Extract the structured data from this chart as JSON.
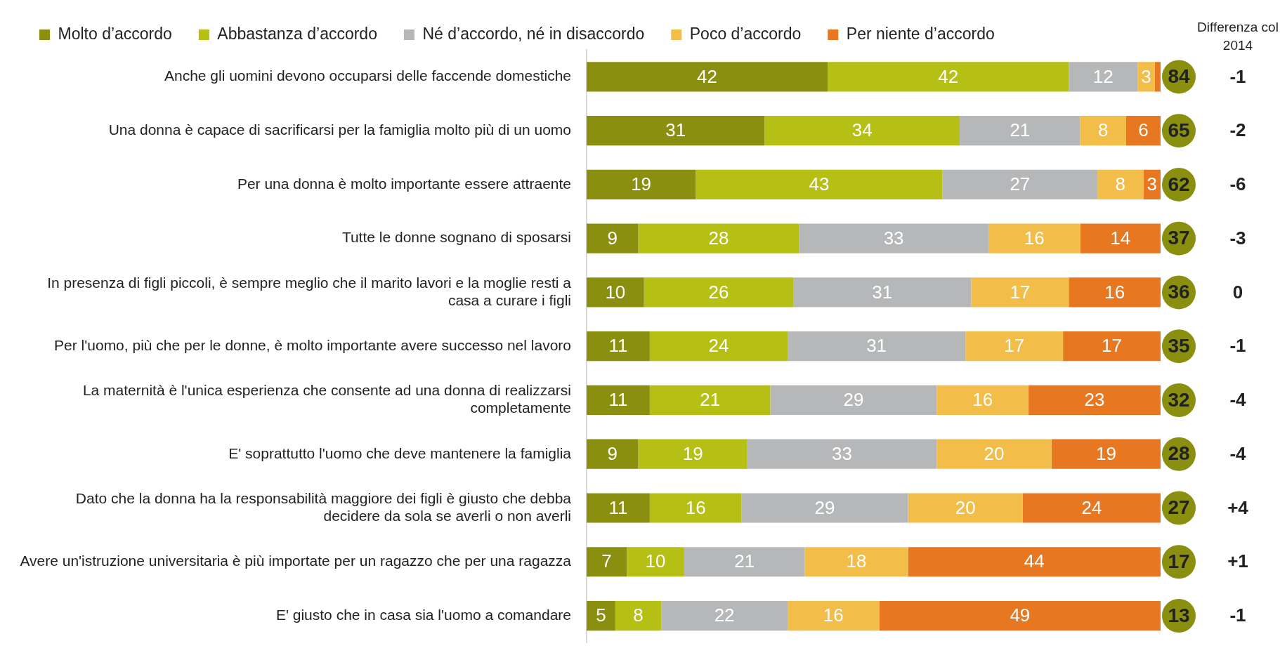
{
  "chart_data": {
    "type": "bar",
    "orientation": "horizontal",
    "stacked": true,
    "legend": "top",
    "grid": false,
    "tick_labels": "y",
    "xlim": [
      0,
      100
    ],
    "categories": [
      "Anche gli uomini devono occuparsi delle faccende domestiche",
      "Una donna è capace di sacrificarsi per la famiglia molto più di un uomo",
      "Per una donna è molto importante essere attraente",
      "Tutte le donne sognano di sposarsi",
      "In presenza di figli piccoli, è sempre meglio che il marito lavori e la moglie resti a casa a curare i figli",
      "Per l'uomo, più che per le donne, è molto importante avere successo nel lavoro",
      "La maternità è l'unica esperienza che consente ad una donna di realizzarsi completamente",
      "E' soprattutto l'uomo che deve mantenere la famiglia",
      "Dato che la donna ha la responsabilità maggiore dei figli è giusto che debba decidere da sola se averli o non averli",
      "Avere un'istruzione universitaria è più importate per un ragazzo che per una ragazza",
      "E' giusto che in casa sia l'uomo a comandare"
    ],
    "series": [
      {
        "name": "Molto d’accordo",
        "color": "#8a8f10",
        "values": [
          42,
          31,
          19,
          9,
          10,
          11,
          11,
          9,
          11,
          7,
          5
        ],
        "value_labels": [
          "42",
          "31",
          "19",
          "9",
          "10",
          "11",
          "11",
          "9",
          "11",
          "7",
          "5"
        ]
      },
      {
        "name": "Abbastanza d’accordo",
        "color": "#b5bf14",
        "values": [
          42,
          34,
          43,
          28,
          26,
          24,
          21,
          19,
          16,
          10,
          8
        ],
        "value_labels": [
          "42",
          "34",
          "43",
          "28",
          "26",
          "24",
          "21",
          "19",
          "16",
          "10",
          "8"
        ]
      },
      {
        "name": "Né d’accordo, né in disaccordo",
        "color": "#b6b7b8",
        "values": [
          12,
          21,
          27,
          33,
          31,
          31,
          29,
          33,
          29,
          21,
          22
        ],
        "value_labels": [
          "12",
          "21",
          "27",
          "33",
          "31",
          "31",
          "29",
          "33",
          "29",
          "21",
          "22"
        ]
      },
      {
        "name": "Poco d’accordo",
        "color": "#f2bd48",
        "values": [
          3,
          8,
          8,
          16,
          17,
          17,
          16,
          20,
          20,
          18,
          16
        ],
        "value_labels": [
          "3",
          "8",
          "8",
          "16",
          "17",
          "17",
          "16",
          "20",
          "20",
          "18",
          "16"
        ]
      },
      {
        "name": "Per niente d’accordo",
        "color": "#e87722",
        "values": [
          1,
          6,
          3,
          14,
          16,
          17,
          23,
          19,
          24,
          44,
          49
        ],
        "value_labels": [
          null,
          "6",
          "3",
          "14",
          "16",
          "17",
          "23",
          "19",
          "24",
          "44",
          "49"
        ]
      }
    ],
    "annotations": [
      "Differenza col 2014",
      "84",
      "65",
      "62",
      "37",
      "36",
      "35",
      "32",
      "28",
      "27",
      "17",
      "13",
      "-1",
      "-2",
      "-6",
      "-3",
      "0",
      "-1",
      "-4",
      "-4",
      "+4",
      "+1",
      "-1"
    ]
  }
}
